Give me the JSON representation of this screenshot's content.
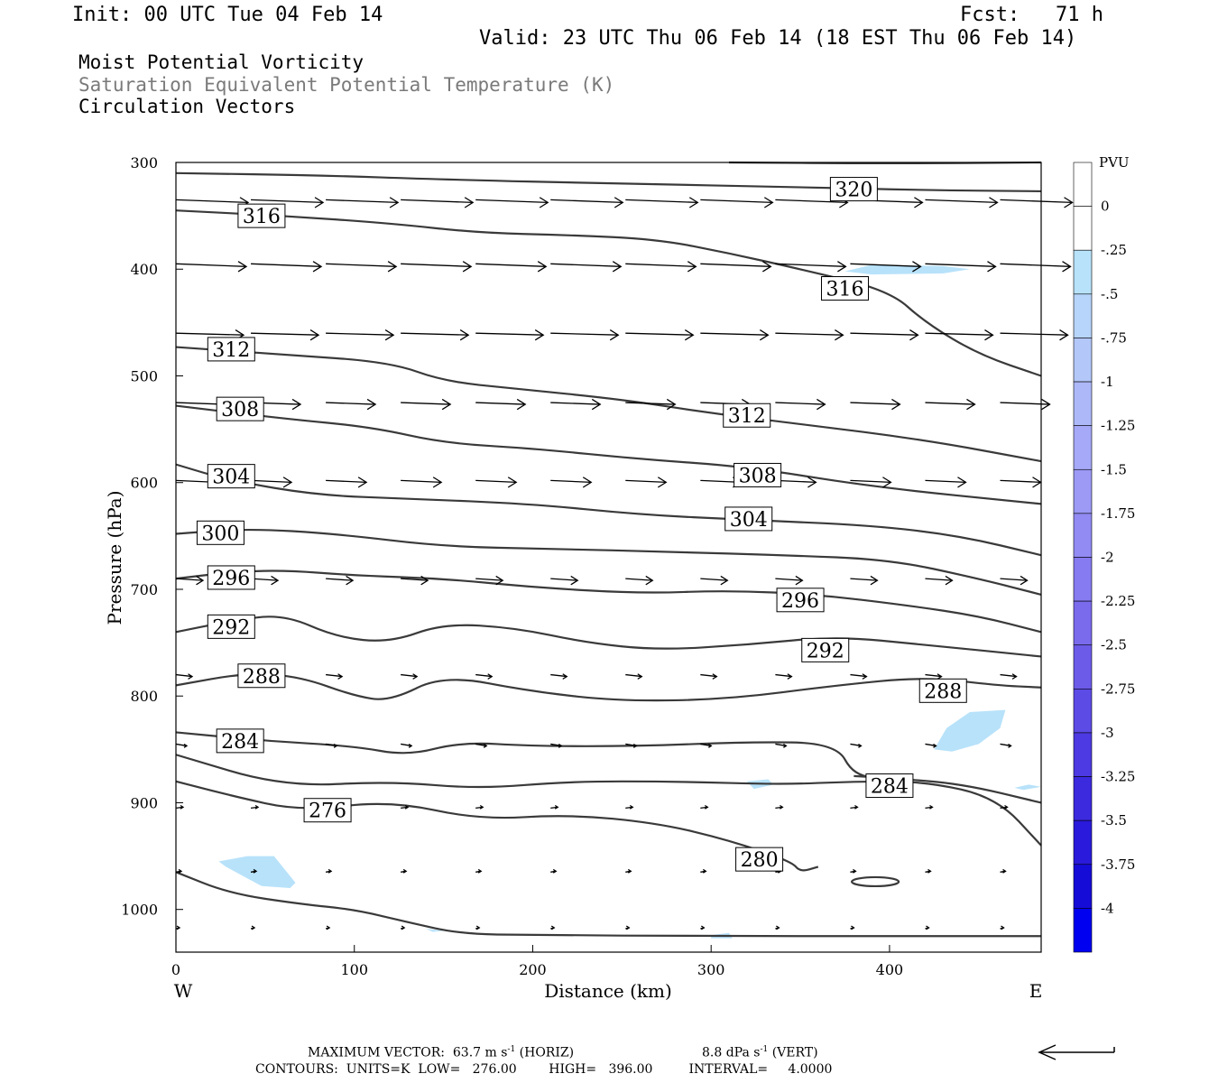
{
  "header": {
    "init": "Init: 00 UTC Tue 04 Feb 14",
    "fcst": "Fcst:   71 h",
    "valid": "Valid: 23 UTC Thu 06 Feb 14 (18 EST Thu 06 Feb 14)",
    "line1": "Moist Potential Vorticity",
    "line2": "Saturation Equivalent Potential Temperature (K)",
    "line3": "Circulation Vectors"
  },
  "footer": {
    "max_vector": "MAXIMUM VECTOR:  63.7 m s",
    "horiz": "(HORIZ)",
    "vert_val": "8.8 dPa s",
    "vert": "(VERT)",
    "contours": "CONTOURS:  UNITS=K  LOW=   276.00        HIGH=   396.00         INTERVAL=     4.0000",
    "exp": "-1"
  },
  "colors": {
    "contour": "#3a3a3a",
    "pv_fill": "#b8e2fa",
    "frame": "#000000"
  },
  "chart_data": {
    "type": "cross-section",
    "xlabel": "Distance (km)",
    "ylabel": "Pressure (hPa)",
    "x_ticks": [
      0,
      100,
      200,
      300,
      400
    ],
    "y_ticks": [
      300,
      400,
      500,
      600,
      700,
      800,
      900,
      1000
    ],
    "xlim": [
      0,
      485
    ],
    "ylim": [
      300,
      1040
    ],
    "y_reversed": true,
    "west_label": "W",
    "east_label": "E",
    "colorbar": {
      "title": "PVU",
      "levels": [
        "0",
        "-.25",
        "-.5",
        "-.75",
        "-1",
        "-1.25",
        "-1.5",
        "-1.75",
        "-2",
        "-2.25",
        "-2.5",
        "-2.75",
        "-3",
        "-3.25",
        "-3.5",
        "-3.75",
        "-4"
      ],
      "colors": [
        "#ffffff",
        "#ffffff",
        "#b8e2fa",
        "#b7d4fa",
        "#b3c7f9",
        "#adb8f8",
        "#a5a9f7",
        "#9c9af5",
        "#928bf3",
        "#867bf0",
        "#7a6bed",
        "#6c5be9",
        "#5d4be6",
        "#4d3ae2",
        "#3c2adf",
        "#2a1adb",
        "#160cd8",
        "#0000f0"
      ]
    },
    "contour_labels": [
      {
        "value": "320",
        "x": 380,
        "p": 325
      },
      {
        "value": "316",
        "x": 48,
        "p": 350
      },
      {
        "value": "316",
        "x": 375,
        "p": 418
      },
      {
        "value": "312",
        "x": 31,
        "p": 475
      },
      {
        "value": "308",
        "x": 36,
        "p": 531
      },
      {
        "value": "312",
        "x": 320,
        "p": 537
      },
      {
        "value": "304",
        "x": 31,
        "p": 594
      },
      {
        "value": "308",
        "x": 326,
        "p": 593
      },
      {
        "value": "300",
        "x": 25,
        "p": 647
      },
      {
        "value": "304",
        "x": 321,
        "p": 634
      },
      {
        "value": "296",
        "x": 31,
        "p": 689
      },
      {
        "value": "296",
        "x": 350,
        "p": 710
      },
      {
        "value": "292",
        "x": 31,
        "p": 735
      },
      {
        "value": "292",
        "x": 364,
        "p": 757
      },
      {
        "value": "288",
        "x": 48,
        "p": 781
      },
      {
        "value": "288",
        "x": 430,
        "p": 795
      },
      {
        "value": "284",
        "x": 36,
        "p": 842
      },
      {
        "value": "284",
        "x": 400,
        "p": 884
      },
      {
        "value": "276",
        "x": 85,
        "p": 907
      },
      {
        "value": "280",
        "x": 327,
        "p": 953
      }
    ],
    "contours": [
      {
        "level": 320,
        "p_km": [
          [
            0,
            310
          ],
          [
            80,
            312
          ],
          [
            150,
            316
          ],
          [
            250,
            320
          ],
          [
            350,
            323
          ],
          [
            420,
            326
          ],
          [
            485,
            327
          ]
        ]
      },
      {
        "level": 320,
        "p_km": [
          [
            310,
            300
          ],
          [
            400,
            301
          ],
          [
            485,
            300
          ]
        ]
      },
      {
        "level": 316,
        "p_km": [
          [
            0,
            345
          ],
          [
            60,
            350
          ],
          [
            120,
            357
          ],
          [
            170,
            366
          ],
          [
            220,
            368
          ],
          [
            270,
            372
          ],
          [
            310,
            385
          ],
          [
            350,
            400
          ],
          [
            400,
            420
          ],
          [
            420,
            450
          ],
          [
            450,
            480
          ],
          [
            485,
            500
          ]
        ]
      },
      {
        "level": 312,
        "p_km": [
          [
            0,
            473
          ],
          [
            60,
            480
          ],
          [
            120,
            487
          ],
          [
            150,
            505
          ],
          [
            190,
            512
          ],
          [
            250,
            522
          ],
          [
            300,
            535
          ],
          [
            350,
            545
          ],
          [
            420,
            560
          ],
          [
            485,
            580
          ]
        ]
      },
      {
        "level": 308,
        "p_km": [
          [
            0,
            528
          ],
          [
            60,
            540
          ],
          [
            110,
            548
          ],
          [
            150,
            563
          ],
          [
            200,
            568
          ],
          [
            260,
            578
          ],
          [
            320,
            585
          ],
          [
            390,
            604
          ],
          [
            485,
            620
          ]
        ]
      },
      {
        "level": 304,
        "p_km": [
          [
            0,
            583
          ],
          [
            30,
            598
          ],
          [
            80,
            612
          ],
          [
            130,
            615
          ],
          [
            200,
            620
          ],
          [
            260,
            630
          ],
          [
            320,
            635
          ],
          [
            390,
            640
          ],
          [
            440,
            650
          ],
          [
            485,
            668
          ]
        ]
      },
      {
        "level": 300,
        "p_km": [
          [
            0,
            648
          ],
          [
            40,
            643
          ],
          [
            90,
            648
          ],
          [
            150,
            660
          ],
          [
            210,
            662
          ],
          [
            280,
            665
          ],
          [
            340,
            668
          ],
          [
            400,
            672
          ],
          [
            450,
            690
          ],
          [
            485,
            705
          ]
        ]
      },
      {
        "level": 296,
        "p_km": [
          [
            0,
            690
          ],
          [
            30,
            684
          ],
          [
            60,
            682
          ],
          [
            100,
            687
          ],
          [
            150,
            690
          ],
          [
            200,
            698
          ],
          [
            260,
            704
          ],
          [
            310,
            701
          ],
          [
            360,
            705
          ],
          [
            410,
            715
          ],
          [
            450,
            725
          ],
          [
            485,
            740
          ]
        ]
      },
      {
        "level": 292,
        "p_km": [
          [
            0,
            740
          ],
          [
            30,
            730
          ],
          [
            60,
            723
          ],
          [
            90,
            745
          ],
          [
            120,
            750
          ],
          [
            150,
            732
          ],
          [
            190,
            736
          ],
          [
            230,
            750
          ],
          [
            270,
            757
          ],
          [
            320,
            752
          ],
          [
            370,
            744
          ],
          [
            420,
            752
          ],
          [
            485,
            763
          ]
        ]
      },
      {
        "level": 288,
        "p_km": [
          [
            0,
            790
          ],
          [
            40,
            778
          ],
          [
            70,
            782
          ],
          [
            100,
            800
          ],
          [
            120,
            805
          ],
          [
            150,
            780
          ],
          [
            200,
            796
          ],
          [
            250,
            805
          ],
          [
            310,
            803
          ],
          [
            370,
            790
          ],
          [
            420,
            782
          ],
          [
            460,
            790
          ],
          [
            485,
            792
          ]
        ]
      },
      {
        "level": 284,
        "p_km": [
          [
            0,
            834
          ],
          [
            50,
            842
          ],
          [
            100,
            847
          ],
          [
            130,
            856
          ],
          [
            160,
            843
          ],
          [
            200,
            847
          ],
          [
            260,
            847
          ],
          [
            320,
            843
          ],
          [
            370,
            844
          ],
          [
            380,
            875
          ],
          [
            400,
            877
          ],
          [
            440,
            882
          ],
          [
            485,
            900
          ]
        ]
      },
      {
        "level": 284,
        "p_km": [
          [
            380,
            875
          ],
          [
            400,
            877
          ]
        ]
      },
      {
        "level": 280,
        "p_km": [
          [
            0,
            880
          ],
          [
            30,
            893
          ],
          [
            70,
            908
          ],
          [
            120,
            898
          ],
          [
            170,
            916
          ],
          [
            220,
            911
          ],
          [
            270,
            919
          ],
          [
            310,
            935
          ],
          [
            345,
            955
          ],
          [
            350,
            965
          ],
          [
            360,
            960
          ]
        ]
      },
      {
        "level": 280,
        "p_km": [
          [
            0,
            855
          ],
          [
            60,
            885
          ],
          [
            120,
            880
          ],
          [
            170,
            887
          ],
          [
            220,
            880
          ],
          [
            280,
            880
          ],
          [
            340,
            883
          ],
          [
            380,
            880
          ],
          [
            420,
            880
          ],
          [
            460,
            895
          ],
          [
            485,
            940
          ]
        ]
      },
      {
        "level": 276,
        "p_km": [
          [
            0,
            965
          ],
          [
            30,
            985
          ],
          [
            70,
            995
          ],
          [
            100,
            1000
          ],
          [
            130,
            1012
          ],
          [
            160,
            1023
          ],
          [
            200,
            1024
          ],
          [
            300,
            1025
          ],
          [
            400,
            1025
          ],
          [
            485,
            1025
          ]
        ]
      }
    ],
    "vectors_note": "circulation vectors shown as arrows"
  }
}
